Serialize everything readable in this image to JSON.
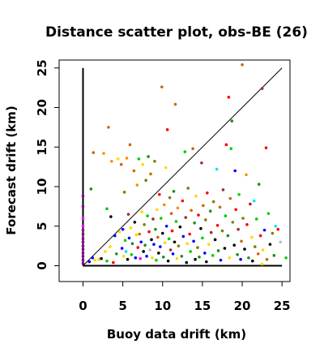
{
  "chart_data": {
    "type": "scatter",
    "title": "Distance scatter plot, obs-BE (26)",
    "xlabel": "Buoy data drift (km)",
    "ylabel": "Forecast drift (km)",
    "xlim": [
      -3,
      26
    ],
    "ylim": [
      -2,
      26
    ],
    "xticks": [
      0,
      5,
      10,
      15,
      20,
      25
    ],
    "yticks": [
      0,
      5,
      10,
      15,
      20,
      25
    ],
    "grid": false,
    "reference_lines": [
      {
        "name": "diagonal",
        "x": [
          0,
          25
        ],
        "y": [
          0,
          25
        ],
        "color": "#000000"
      },
      {
        "name": "x-axis-line",
        "x": [
          0,
          25
        ],
        "y": [
          0,
          0
        ],
        "color": "#000000"
      },
      {
        "name": "y-axis-line",
        "x": [
          0,
          0
        ],
        "y": [
          0,
          25
        ],
        "color": "#000000"
      }
    ],
    "colors": [
      "#000000",
      "#ff0000",
      "#00cd00",
      "#0000ff",
      "#00e5ee",
      "#ff00ff",
      "#ffd700",
      "#bebebe",
      "#cd6600",
      "#7f7f00",
      "#8b008b",
      "#228b22",
      "#a52a2a",
      "#ff8c00"
    ],
    "points": [
      {
        "x": 0,
        "y": 0.3,
        "c": 10
      },
      {
        "x": 0,
        "y": 0.7,
        "c": 10
      },
      {
        "x": 0,
        "y": 1.2,
        "c": 10
      },
      {
        "x": 0,
        "y": 1.6,
        "c": 10
      },
      {
        "x": 0,
        "y": 2.1,
        "c": 10
      },
      {
        "x": 0,
        "y": 2.5,
        "c": 10
      },
      {
        "x": 0,
        "y": 3.0,
        "c": 10
      },
      {
        "x": 0,
        "y": 3.4,
        "c": 10
      },
      {
        "x": 0,
        "y": 4.0,
        "c": 10
      },
      {
        "x": 0,
        "y": 4.5,
        "c": 10
      },
      {
        "x": 0,
        "y": 5.0,
        "c": 5
      },
      {
        "x": 0,
        "y": 6.0,
        "c": 5
      },
      {
        "x": 0,
        "y": 7.5,
        "c": 10
      },
      {
        "x": 0,
        "y": 8.8,
        "c": 10
      },
      {
        "x": 0.8,
        "y": 0.5,
        "c": 3
      },
      {
        "x": 1.2,
        "y": 1.0,
        "c": 3
      },
      {
        "x": 1.0,
        "y": 9.7,
        "c": 11
      },
      {
        "x": 1.3,
        "y": 14.3,
        "c": 8
      },
      {
        "x": 1.5,
        "y": 0.7,
        "c": 6
      },
      {
        "x": 2.0,
        "y": 0.8,
        "c": 6
      },
      {
        "x": 2.3,
        "y": 0.9,
        "c": 0
      },
      {
        "x": 2.6,
        "y": 14.2,
        "c": 13
      },
      {
        "x": 2.8,
        "y": 1.8,
        "c": 6
      },
      {
        "x": 3.0,
        "y": 0.6,
        "c": 2
      },
      {
        "x": 3.2,
        "y": 17.5,
        "c": 8
      },
      {
        "x": 3.4,
        "y": 2.4,
        "c": 6
      },
      {
        "x": 3.5,
        "y": 6.2,
        "c": 0
      },
      {
        "x": 3.6,
        "y": 13.2,
        "c": 13
      },
      {
        "x": 3.8,
        "y": 0.4,
        "c": 1
      },
      {
        "x": 4.0,
        "y": 3.8,
        "c": 3
      },
      {
        "x": 4.2,
        "y": 1.5,
        "c": 11
      },
      {
        "x": 4.4,
        "y": 13.5,
        "c": 6
      },
      {
        "x": 4.6,
        "y": 4.3,
        "c": 6
      },
      {
        "x": 4.8,
        "y": 12.8,
        "c": 8
      },
      {
        "x": 4.9,
        "y": 2.2,
        "c": 3
      },
      {
        "x": 5.0,
        "y": 4.6,
        "c": 3
      },
      {
        "x": 5.1,
        "y": 1.2,
        "c": 6
      },
      {
        "x": 5.2,
        "y": 9.3,
        "c": 9
      },
      {
        "x": 5.3,
        "y": 3.2,
        "c": 2
      },
      {
        "x": 5.4,
        "y": 1.8,
        "c": 4
      },
      {
        "x": 5.5,
        "y": 13.6,
        "c": 13
      },
      {
        "x": 5.6,
        "y": 0.8,
        "c": 0
      },
      {
        "x": 5.7,
        "y": 6.5,
        "c": 12
      },
      {
        "x": 5.8,
        "y": 3.5,
        "c": 3
      },
      {
        "x": 5.9,
        "y": 15.3,
        "c": 8
      },
      {
        "x": 6.0,
        "y": 4.8,
        "c": 6
      },
      {
        "x": 6.1,
        "y": 1.4,
        "c": 2
      },
      {
        "x": 6.2,
        "y": 2.8,
        "c": 11
      },
      {
        "x": 6.4,
        "y": 12.0,
        "c": 8
      },
      {
        "x": 6.5,
        "y": 5.5,
        "c": 0
      },
      {
        "x": 6.6,
        "y": 1.0,
        "c": 3
      },
      {
        "x": 6.7,
        "y": 3.9,
        "c": 6
      },
      {
        "x": 6.8,
        "y": 10.2,
        "c": 13
      },
      {
        "x": 6.9,
        "y": 2.3,
        "c": 1
      },
      {
        "x": 7.0,
        "y": 13.5,
        "c": 2
      },
      {
        "x": 7.1,
        "y": 4.0,
        "c": 8
      },
      {
        "x": 7.2,
        "y": 0.9,
        "c": 5
      },
      {
        "x": 7.3,
        "y": 3.0,
        "c": 3
      },
      {
        "x": 7.4,
        "y": 6.8,
        "c": 6
      },
      {
        "x": 7.5,
        "y": 12.8,
        "c": 6
      },
      {
        "x": 7.6,
        "y": 1.8,
        "c": 0
      },
      {
        "x": 7.7,
        "y": 5.2,
        "c": 9
      },
      {
        "x": 7.8,
        "y": 2.6,
        "c": 11
      },
      {
        "x": 7.9,
        "y": 10.8,
        "c": 9
      },
      {
        "x": 8.0,
        "y": 1.2,
        "c": 3
      },
      {
        "x": 8.1,
        "y": 6.3,
        "c": 2
      },
      {
        "x": 8.2,
        "y": 13.8,
        "c": 11
      },
      {
        "x": 8.3,
        "y": 4.3,
        "c": 1
      },
      {
        "x": 8.4,
        "y": 2.0,
        "c": 7
      },
      {
        "x": 8.5,
        "y": 11.6,
        "c": 8
      },
      {
        "x": 8.6,
        "y": 3.3,
        "c": 0
      },
      {
        "x": 8.7,
        "y": 1.0,
        "c": 6
      },
      {
        "x": 8.8,
        "y": 5.9,
        "c": 12
      },
      {
        "x": 8.9,
        "y": 2.7,
        "c": 3
      },
      {
        "x": 9.0,
        "y": 13.2,
        "c": 9
      },
      {
        "x": 9.1,
        "y": 4.6,
        "c": 11
      },
      {
        "x": 9.2,
        "y": 0.7,
        "c": 2
      },
      {
        "x": 9.3,
        "y": 7.1,
        "c": 6
      },
      {
        "x": 9.4,
        "y": 3.6,
        "c": 8
      },
      {
        "x": 9.5,
        "y": 1.6,
        "c": 0
      },
      {
        "x": 9.6,
        "y": 9.0,
        "c": 1
      },
      {
        "x": 9.7,
        "y": 2.4,
        "c": 3
      },
      {
        "x": 9.8,
        "y": 6.0,
        "c": 2
      },
      {
        "x": 9.9,
        "y": 22.6,
        "c": 8
      },
      {
        "x": 10.0,
        "y": 4.1,
        "c": 0
      },
      {
        "x": 10.1,
        "y": 1.1,
        "c": 11
      },
      {
        "x": 10.2,
        "y": 7.7,
        "c": 13
      },
      {
        "x": 10.3,
        "y": 2.9,
        "c": 6
      },
      {
        "x": 10.4,
        "y": 12.4,
        "c": 6
      },
      {
        "x": 10.5,
        "y": 5.0,
        "c": 3
      },
      {
        "x": 10.6,
        "y": 17.2,
        "c": 1
      },
      {
        "x": 10.7,
        "y": 0.6,
        "c": 0
      },
      {
        "x": 10.8,
        "y": 3.4,
        "c": 2
      },
      {
        "x": 10.9,
        "y": 8.6,
        "c": 9
      },
      {
        "x": 11.0,
        "y": 2.0,
        "c": 12
      },
      {
        "x": 11.1,
        "y": 6.6,
        "c": 8
      },
      {
        "x": 11.2,
        "y": 4.4,
        "c": 1
      },
      {
        "x": 11.3,
        "y": 1.5,
        "c": 3
      },
      {
        "x": 11.4,
        "y": 9.4,
        "c": 11
      },
      {
        "x": 11.5,
        "y": 3.0,
        "c": 0
      },
      {
        "x": 11.6,
        "y": 20.4,
        "c": 8
      },
      {
        "x": 11.7,
        "y": 5.6,
        "c": 2
      },
      {
        "x": 11.8,
        "y": 0.9,
        "c": 6
      },
      {
        "x": 11.9,
        "y": 7.3,
        "c": 13
      },
      {
        "x": 12.0,
        "y": 2.5,
        "c": 9
      },
      {
        "x": 12.2,
        "y": 4.9,
        "c": 0
      },
      {
        "x": 12.4,
        "y": 1.2,
        "c": 11
      },
      {
        "x": 12.5,
        "y": 8.2,
        "c": 1
      },
      {
        "x": 12.6,
        "y": 3.7,
        "c": 3
      },
      {
        "x": 12.8,
        "y": 14.4,
        "c": 2
      },
      {
        "x": 12.9,
        "y": 6.1,
        "c": 12
      },
      {
        "x": 13.0,
        "y": 0.4,
        "c": 0
      },
      {
        "x": 13.1,
        "y": 2.8,
        "c": 6
      },
      {
        "x": 13.2,
        "y": 9.8,
        "c": 9
      },
      {
        "x": 13.4,
        "y": 4.0,
        "c": 1
      },
      {
        "x": 13.5,
        "y": 1.8,
        "c": 2
      },
      {
        "x": 13.6,
        "y": 7.0,
        "c": 8
      },
      {
        "x": 13.8,
        "y": 14.8,
        "c": 8
      },
      {
        "x": 13.9,
        "y": 3.1,
        "c": 3
      },
      {
        "x": 14.0,
        "y": 5.4,
        "c": 11
      },
      {
        "x": 14.1,
        "y": 0.8,
        "c": 0
      },
      {
        "x": 14.2,
        "y": 8.8,
        "c": 6
      },
      {
        "x": 14.4,
        "y": 2.3,
        "c": 9
      },
      {
        "x": 14.5,
        "y": 6.4,
        "c": 1
      },
      {
        "x": 14.6,
        "y": 1.1,
        "c": 11
      },
      {
        "x": 14.8,
        "y": 4.7,
        "c": 0
      },
      {
        "x": 14.9,
        "y": 13.0,
        "c": 12
      },
      {
        "x": 15.0,
        "y": 3.5,
        "c": 2
      },
      {
        "x": 15.1,
        "y": 7.6,
        "c": 8
      },
      {
        "x": 15.3,
        "y": 1.6,
        "c": 3
      },
      {
        "x": 15.4,
        "y": 5.8,
        "c": 9
      },
      {
        "x": 15.5,
        "y": 0.5,
        "c": 0
      },
      {
        "x": 15.6,
        "y": 9.2,
        "c": 1
      },
      {
        "x": 15.8,
        "y": 2.7,
        "c": 6
      },
      {
        "x": 16.0,
        "y": 6.9,
        "c": 11
      },
      {
        "x": 16.1,
        "y": 4.2,
        "c": 12
      },
      {
        "x": 16.3,
        "y": 1.3,
        "c": 2
      },
      {
        "x": 16.4,
        "y": 8.1,
        "c": 9
      },
      {
        "x": 16.6,
        "y": 3.3,
        "c": 0
      },
      {
        "x": 16.8,
        "y": 12.2,
        "c": 4
      },
      {
        "x": 16.9,
        "y": 5.1,
        "c": 1
      },
      {
        "x": 17.0,
        "y": 1.9,
        "c": 11
      },
      {
        "x": 17.2,
        "y": 7.4,
        "c": 8
      },
      {
        "x": 17.3,
        "y": 0.7,
        "c": 3
      },
      {
        "x": 17.5,
        "y": 4.4,
        "c": 9
      },
      {
        "x": 17.6,
        "y": 9.6,
        "c": 12
      },
      {
        "x": 17.8,
        "y": 2.2,
        "c": 0
      },
      {
        "x": 17.9,
        "y": 6.3,
        "c": 2
      },
      {
        "x": 18.0,
        "y": 15.3,
        "c": 1
      },
      {
        "x": 18.2,
        "y": 3.8,
        "c": 11
      },
      {
        "x": 18.3,
        "y": 21.3,
        "c": 1
      },
      {
        "x": 18.4,
        "y": 1.0,
        "c": 6
      },
      {
        "x": 18.5,
        "y": 8.5,
        "c": 8
      },
      {
        "x": 18.6,
        "y": 14.8,
        "c": 2
      },
      {
        "x": 18.7,
        "y": 18.3,
        "c": 11
      },
      {
        "x": 18.8,
        "y": 5.5,
        "c": 9
      },
      {
        "x": 19.0,
        "y": 2.6,
        "c": 0
      },
      {
        "x": 19.1,
        "y": 12.0,
        "c": 3
      },
      {
        "x": 19.2,
        "y": 7.1,
        "c": 1
      },
      {
        "x": 19.4,
        "y": 1.4,
        "c": 11
      },
      {
        "x": 19.5,
        "y": 4.6,
        "c": 12
      },
      {
        "x": 19.6,
        "y": 9.0,
        "c": 2
      },
      {
        "x": 19.8,
        "y": 0.8,
        "c": 3
      },
      {
        "x": 19.9,
        "y": 3.1,
        "c": 8
      },
      {
        "x": 20.0,
        "y": 25.4,
        "c": 8
      },
      {
        "x": 20.1,
        "y": 6.0,
        "c": 9
      },
      {
        "x": 20.3,
        "y": 2.1,
        "c": 0
      },
      {
        "x": 20.5,
        "y": 11.5,
        "c": 13
      },
      {
        "x": 20.6,
        "y": 5.2,
        "c": 1
      },
      {
        "x": 20.8,
        "y": 1.0,
        "c": 11
      },
      {
        "x": 21.0,
        "y": 7.8,
        "c": 12
      },
      {
        "x": 21.2,
        "y": 3.6,
        "c": 6
      },
      {
        "x": 21.3,
        "y": 0.6,
        "c": 0
      },
      {
        "x": 21.5,
        "y": 8.2,
        "c": 4
      },
      {
        "x": 21.6,
        "y": 2.4,
        "c": 9
      },
      {
        "x": 21.8,
        "y": 5.9,
        "c": 2
      },
      {
        "x": 22.0,
        "y": 1.5,
        "c": 8
      },
      {
        "x": 22.1,
        "y": 10.3,
        "c": 11
      },
      {
        "x": 22.3,
        "y": 3.8,
        "c": 1
      },
      {
        "x": 22.5,
        "y": 22.4,
        "c": 12
      },
      {
        "x": 22.6,
        "y": 2.0,
        "c": 6
      },
      {
        "x": 22.8,
        "y": 4.5,
        "c": 3
      },
      {
        "x": 23.0,
        "y": 14.9,
        "c": 1
      },
      {
        "x": 23.1,
        "y": 0.8,
        "c": 8
      },
      {
        "x": 23.3,
        "y": 6.6,
        "c": 2
      },
      {
        "x": 23.5,
        "y": 2.7,
        "c": 0
      },
      {
        "x": 23.8,
        "y": 4.1,
        "c": 9
      },
      {
        "x": 24.0,
        "y": 1.3,
        "c": 11
      },
      {
        "x": 24.2,
        "y": 5.0,
        "c": 4
      },
      {
        "x": 24.5,
        "y": 4.6,
        "c": 1
      },
      {
        "x": 22.5,
        "y": 0.2,
        "c": 6
      },
      {
        "x": 25.5,
        "y": 1.0,
        "c": 2
      },
      {
        "x": 24.8,
        "y": 3.0,
        "c": 7
      },
      {
        "x": 3.0,
        "y": 7.2,
        "c": 2
      }
    ]
  }
}
